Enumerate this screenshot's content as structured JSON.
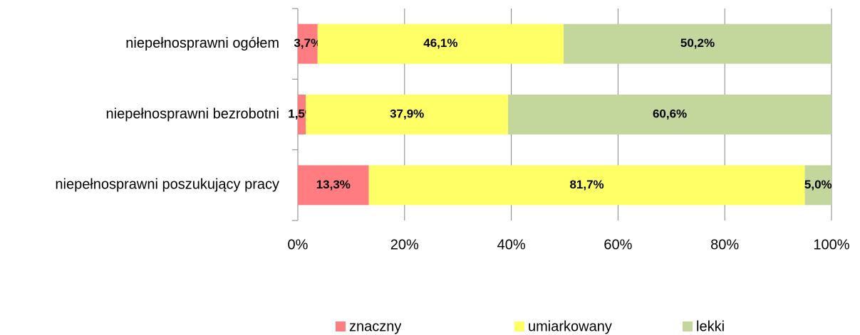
{
  "chart_data": {
    "type": "stacked-bar-horizontal",
    "categories": [
      "niepełnosprawni ogółem",
      "niepełnosprawni bezrobotni",
      "niepełnosprawni poszukujący pracy"
    ],
    "series": [
      {
        "name": "znaczny",
        "color": "#ff7c80",
        "values": [
          3.7,
          1.5,
          13.3
        ],
        "value_labels": [
          "3,7%",
          "1,5%",
          "13,3%"
        ]
      },
      {
        "name": "umiarkowany",
        "color": "#ffff66",
        "values": [
          46.1,
          37.9,
          81.7
        ],
        "value_labels": [
          "46,1%",
          "37,9%",
          "81,7%"
        ]
      },
      {
        "name": "lekki",
        "color": "#c3d69b",
        "values": [
          50.2,
          60.6,
          5.0
        ],
        "value_labels": [
          "50,2%",
          "60,6%",
          "5,0%"
        ]
      }
    ],
    "xlim": [
      0,
      100
    ],
    "xticks": [
      {
        "value": 0,
        "label": "0%"
      },
      {
        "value": 20,
        "label": "20%"
      },
      {
        "value": 40,
        "label": "40%"
      },
      {
        "value": 60,
        "label": "60%"
      },
      {
        "value": 80,
        "label": "80%"
      },
      {
        "value": 100,
        "label": "100%"
      }
    ],
    "grid": true,
    "legend": "bottom"
  }
}
